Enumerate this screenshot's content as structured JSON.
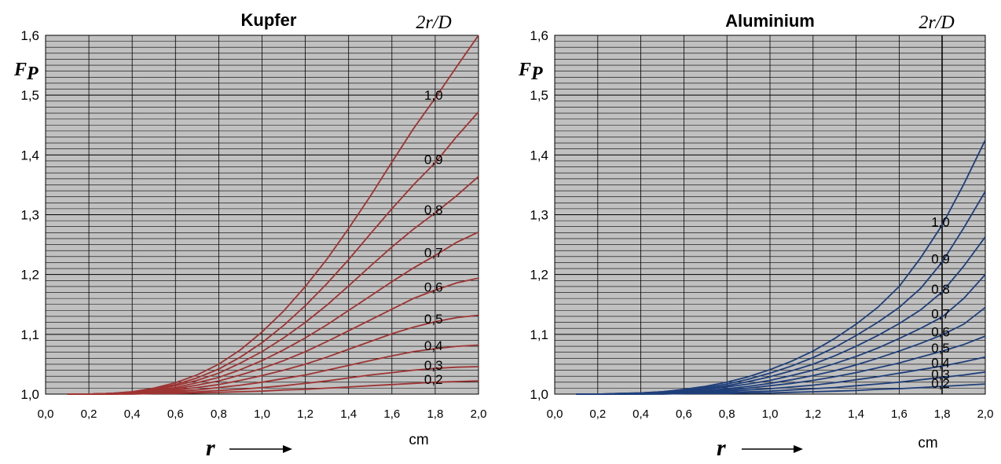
{
  "chart_data": [
    {
      "type": "line",
      "title": "Kupfer",
      "legend_title": "2r/D",
      "ylabel": "F",
      "ylabel_sub": "P",
      "xlabel": "r",
      "x_unit": "cm",
      "xlim": [
        0.0,
        2.0
      ],
      "ylim": [
        1.0,
        1.6
      ],
      "x_ticks": [
        "0,0",
        "0,2",
        "0,4",
        "0,6",
        "0,8",
        "1,0",
        "1,2",
        "1,4",
        "1,6",
        "1,8",
        "2,0"
      ],
      "y_ticks": [
        "1,0",
        "1,1",
        "1,2",
        "1,3",
        "1,4",
        "1,5",
        "1,6"
      ],
      "grid": true,
      "line_color": "#9e3433",
      "x": [
        0.1,
        0.2,
        0.3,
        0.4,
        0.5,
        0.6,
        0.7,
        0.8,
        0.9,
        1.0,
        1.1,
        1.2,
        1.3,
        1.4,
        1.5,
        1.6,
        1.7,
        1.8,
        1.9,
        2.0
      ],
      "series": [
        {
          "name": "0,2",
          "values": [
            1.0,
            1.0,
            1.0,
            1.0,
            1.001,
            1.001,
            1.002,
            1.003,
            1.004,
            1.005,
            1.007,
            1.008,
            1.01,
            1.012,
            1.014,
            1.016,
            1.018,
            1.02,
            1.021,
            1.022
          ]
        },
        {
          "name": "0,3",
          "values": [
            1.0,
            1.0,
            1.0,
            1.001,
            1.002,
            1.003,
            1.004,
            1.006,
            1.008,
            1.011,
            1.014,
            1.018,
            1.022,
            1.027,
            1.032,
            1.036,
            1.04,
            1.043,
            1.045,
            1.046
          ]
        },
        {
          "name": "0,4",
          "values": [
            1.0,
            1.0,
            1.0,
            1.001,
            1.003,
            1.005,
            1.007,
            1.011,
            1.015,
            1.02,
            1.026,
            1.032,
            1.04,
            1.048,
            1.056,
            1.064,
            1.071,
            1.076,
            1.08,
            1.082
          ]
        },
        {
          "name": "0,5",
          "values": [
            1.0,
            1.0,
            1.001,
            1.002,
            1.004,
            1.007,
            1.011,
            1.016,
            1.023,
            1.031,
            1.04,
            1.05,
            1.062,
            1.075,
            1.088,
            1.101,
            1.112,
            1.121,
            1.128,
            1.132
          ]
        },
        {
          "name": "0,6",
          "values": [
            1.0,
            1.0,
            1.001,
            1.002,
            1.005,
            1.009,
            1.015,
            1.022,
            1.032,
            1.043,
            1.056,
            1.071,
            1.088,
            1.106,
            1.124,
            1.142,
            1.16,
            1.174,
            1.186,
            1.194
          ]
        },
        {
          "name": "0,7",
          "values": [
            1.0,
            1.0,
            1.001,
            1.003,
            1.006,
            1.011,
            1.019,
            1.028,
            1.041,
            1.056,
            1.074,
            1.094,
            1.116,
            1.14,
            1.164,
            1.188,
            1.211,
            1.232,
            1.254,
            1.271
          ]
        },
        {
          "name": "0,8",
          "values": [
            1.0,
            1.0,
            1.001,
            1.003,
            1.007,
            1.014,
            1.023,
            1.035,
            1.052,
            1.071,
            1.094,
            1.12,
            1.149,
            1.181,
            1.214,
            1.246,
            1.276,
            1.303,
            1.332,
            1.364
          ]
        },
        {
          "name": "0,9",
          "values": [
            1.0,
            1.0,
            1.001,
            1.004,
            1.009,
            1.016,
            1.027,
            1.042,
            1.062,
            1.086,
            1.115,
            1.148,
            1.185,
            1.225,
            1.268,
            1.31,
            1.35,
            1.387,
            1.431,
            1.472
          ]
        },
        {
          "name": "1,0",
          "values": [
            1.0,
            1.0,
            1.001,
            1.004,
            1.01,
            1.019,
            1.032,
            1.05,
            1.074,
            1.104,
            1.139,
            1.18,
            1.226,
            1.277,
            1.331,
            1.388,
            1.444,
            1.495,
            1.548,
            1.6
          ]
        }
      ]
    },
    {
      "type": "line",
      "title": "Aluminium",
      "legend_title": "2r/D",
      "ylabel": "F",
      "ylabel_sub": "P",
      "xlabel": "r",
      "x_unit": "cm",
      "xlim": [
        0.0,
        2.0
      ],
      "ylim": [
        1.0,
        1.6
      ],
      "x_ticks": [
        "0,0",
        "0,2",
        "0,4",
        "0,6",
        "0,8",
        "1,0",
        "1,2",
        "1,4",
        "1,6",
        "1,8",
        "2,0"
      ],
      "y_ticks": [
        "1,0",
        "1,1",
        "1,2",
        "1,3",
        "1,4",
        "1,5",
        "1,6"
      ],
      "grid": true,
      "line_color": "#1f3f7a",
      "x": [
        0.1,
        0.2,
        0.3,
        0.4,
        0.5,
        0.6,
        0.7,
        0.8,
        0.9,
        1.0,
        1.1,
        1.2,
        1.3,
        1.4,
        1.5,
        1.6,
        1.7,
        1.8,
        1.9,
        2.0
      ],
      "series": [
        {
          "name": "0,2",
          "values": [
            1.0,
            1.0,
            1.0,
            1.0,
            1.0,
            1.001,
            1.001,
            1.001,
            1.002,
            1.002,
            1.003,
            1.004,
            1.005,
            1.006,
            1.008,
            1.009,
            1.011,
            1.013,
            1.015,
            1.017
          ]
        },
        {
          "name": "0,3",
          "values": [
            1.0,
            1.0,
            1.0,
            1.0,
            1.001,
            1.001,
            1.002,
            1.003,
            1.004,
            1.005,
            1.007,
            1.009,
            1.011,
            1.014,
            1.017,
            1.02,
            1.024,
            1.028,
            1.032,
            1.037
          ]
        },
        {
          "name": "0,4",
          "values": [
            1.0,
            1.0,
            1.0,
            1.001,
            1.001,
            1.002,
            1.003,
            1.005,
            1.007,
            1.009,
            1.012,
            1.015,
            1.019,
            1.024,
            1.029,
            1.035,
            1.041,
            1.047,
            1.054,
            1.062
          ]
        },
        {
          "name": "0,5",
          "values": [
            1.0,
            1.0,
            1.0,
            1.001,
            1.002,
            1.003,
            1.005,
            1.007,
            1.01,
            1.014,
            1.018,
            1.023,
            1.029,
            1.036,
            1.044,
            1.052,
            1.062,
            1.072,
            1.083,
            1.097
          ]
        },
        {
          "name": "0,6",
          "values": [
            1.0,
            1.0,
            1.0,
            1.001,
            1.002,
            1.004,
            1.006,
            1.009,
            1.013,
            1.018,
            1.024,
            1.031,
            1.039,
            1.049,
            1.06,
            1.072,
            1.085,
            1.099,
            1.117,
            1.145
          ]
        },
        {
          "name": "0,7",
          "values": [
            1.0,
            1.0,
            1.0,
            1.001,
            1.003,
            1.005,
            1.008,
            1.012,
            1.017,
            1.023,
            1.031,
            1.04,
            1.051,
            1.063,
            1.077,
            1.093,
            1.11,
            1.129,
            1.16,
            1.2
          ]
        },
        {
          "name": "0,8",
          "values": [
            1.0,
            1.0,
            1.0,
            1.001,
            1.003,
            1.006,
            1.009,
            1.014,
            1.021,
            1.029,
            1.039,
            1.05,
            1.064,
            1.08,
            1.098,
            1.118,
            1.141,
            1.171,
            1.214,
            1.263
          ]
        },
        {
          "name": "0,9",
          "values": [
            1.0,
            1.0,
            1.001,
            1.002,
            1.004,
            1.007,
            1.011,
            1.017,
            1.025,
            1.035,
            1.047,
            1.061,
            1.078,
            1.098,
            1.12,
            1.145,
            1.177,
            1.221,
            1.278,
            1.339
          ]
        },
        {
          "name": "1,0",
          "values": [
            1.0,
            1.0,
            1.001,
            1.002,
            1.004,
            1.008,
            1.013,
            1.02,
            1.029,
            1.041,
            1.055,
            1.072,
            1.093,
            1.117,
            1.145,
            1.18,
            1.228,
            1.283,
            1.351,
            1.425
          ]
        }
      ]
    }
  ]
}
